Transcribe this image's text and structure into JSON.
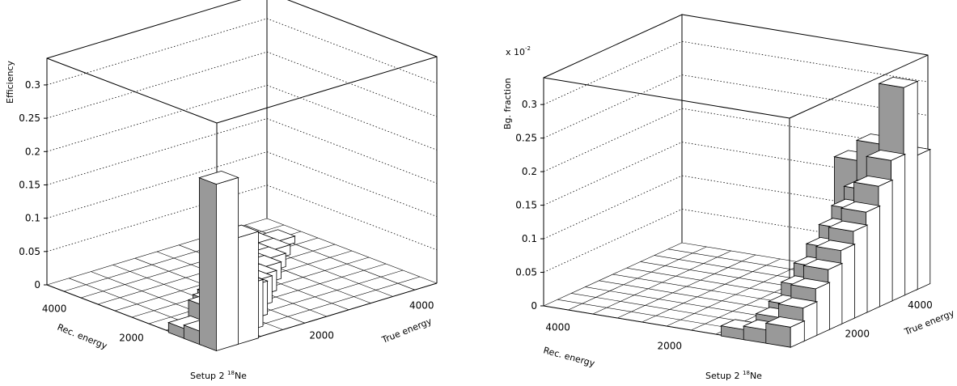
{
  "chart_data": [
    {
      "type": "lego3d",
      "zlabel": "Efficiency",
      "xlabel": "True energy",
      "ylabel": "Rec. energy",
      "caption": {
        "prefix": "Setup 2 ",
        "sup": "18",
        "suffix": "Ne"
      },
      "multiplier": null,
      "z_ticks": [
        "0",
        "0.05",
        "0.1",
        "0.15",
        "0.2",
        "0.25",
        "0.3"
      ],
      "zlim": [
        0,
        0.34
      ],
      "x_ticks": [
        "2000",
        "4000"
      ],
      "y_ticks": [
        "2000",
        "4000"
      ],
      "xlim": [
        0,
        4400
      ],
      "ylim": [
        0,
        4400
      ],
      "grid": true,
      "bins": [
        {
          "x": 400,
          "y": 400,
          "z": 0.25
        },
        {
          "x": 400,
          "y": 800,
          "z": 0.02
        },
        {
          "x": 400,
          "y": 1200,
          "z": 0.015
        },
        {
          "x": 800,
          "y": 400,
          "z": 0.16
        },
        {
          "x": 800,
          "y": 800,
          "z": 0.09
        },
        {
          "x": 800,
          "y": 1200,
          "z": 0.04
        },
        {
          "x": 1200,
          "y": 800,
          "z": 0.07
        },
        {
          "x": 1200,
          "y": 1200,
          "z": 0.06
        },
        {
          "x": 1200,
          "y": 1600,
          "z": 0.03
        },
        {
          "x": 1600,
          "y": 1200,
          "z": 0.05
        },
        {
          "x": 1600,
          "y": 1600,
          "z": 0.045
        },
        {
          "x": 1600,
          "y": 2000,
          "z": 0.02
        },
        {
          "x": 2000,
          "y": 1600,
          "z": 0.04
        },
        {
          "x": 2000,
          "y": 2000,
          "z": 0.035
        },
        {
          "x": 2000,
          "y": 2400,
          "z": 0.015
        },
        {
          "x": 2400,
          "y": 2000,
          "z": 0.03
        },
        {
          "x": 2400,
          "y": 2400,
          "z": 0.03
        },
        {
          "x": 2800,
          "y": 2400,
          "z": 0.025
        },
        {
          "x": 2800,
          "y": 2800,
          "z": 0.025
        },
        {
          "x": 3200,
          "y": 2800,
          "z": 0.02
        },
        {
          "x": 3200,
          "y": 3200,
          "z": 0.02
        },
        {
          "x": 3600,
          "y": 3200,
          "z": 0.015
        },
        {
          "x": 3600,
          "y": 3600,
          "z": 0.015
        },
        {
          "x": 4000,
          "y": 3600,
          "z": 0.01
        }
      ]
    },
    {
      "type": "lego3d",
      "zlabel": "Bg. fraction",
      "xlabel": "True energy",
      "ylabel": "Rec. energy",
      "caption": {
        "prefix": "Setup 2 ",
        "sup": "18",
        "suffix": "Ne"
      },
      "multiplier": {
        "base": "x 10",
        "exp": "-2"
      },
      "z_ticks": [
        "0",
        "0.05",
        "0.1",
        "0.15",
        "0.2",
        "0.25",
        "0.3"
      ],
      "zlim": [
        0,
        0.34
      ],
      "x_ticks": [
        "2000",
        "4000"
      ],
      "y_ticks": [
        "2000",
        "4000"
      ],
      "xlim": [
        0,
        4400
      ],
      "ylim": [
        0,
        4400
      ],
      "grid": true,
      "bins": [
        {
          "x": 400,
          "y": 400,
          "z": 0.03
        },
        {
          "x": 400,
          "y": 800,
          "z": 0.02
        },
        {
          "x": 400,
          "y": 1200,
          "z": 0.015
        },
        {
          "x": 800,
          "y": 400,
          "z": 0.05
        },
        {
          "x": 800,
          "y": 800,
          "z": 0.03
        },
        {
          "x": 1200,
          "y": 400,
          "z": 0.07
        },
        {
          "x": 1200,
          "y": 800,
          "z": 0.04
        },
        {
          "x": 1600,
          "y": 400,
          "z": 0.09
        },
        {
          "x": 1600,
          "y": 800,
          "z": 0.06
        },
        {
          "x": 2000,
          "y": 400,
          "z": 0.11
        },
        {
          "x": 2000,
          "y": 800,
          "z": 0.08
        },
        {
          "x": 2400,
          "y": 400,
          "z": 0.13
        },
        {
          "x": 2400,
          "y": 800,
          "z": 0.1
        },
        {
          "x": 2800,
          "y": 400,
          "z": 0.15
        },
        {
          "x": 2800,
          "y": 800,
          "z": 0.12
        },
        {
          "x": 3200,
          "y": 400,
          "z": 0.18
        },
        {
          "x": 3200,
          "y": 800,
          "z": 0.14
        },
        {
          "x": 3600,
          "y": 400,
          "z": 0.21
        },
        {
          "x": 3600,
          "y": 800,
          "z": 0.16
        },
        {
          "x": 3600,
          "y": 1200,
          "z": 0.09
        },
        {
          "x": 4000,
          "y": 400,
          "z": 0.31
        },
        {
          "x": 4000,
          "y": 800,
          "z": 0.22
        },
        {
          "x": 4000,
          "y": 1200,
          "z": 0.19
        },
        {
          "x": 4400,
          "y": 400,
          "z": 0.2
        },
        {
          "x": 4400,
          "y": 800,
          "z": 0.18
        }
      ]
    }
  ]
}
